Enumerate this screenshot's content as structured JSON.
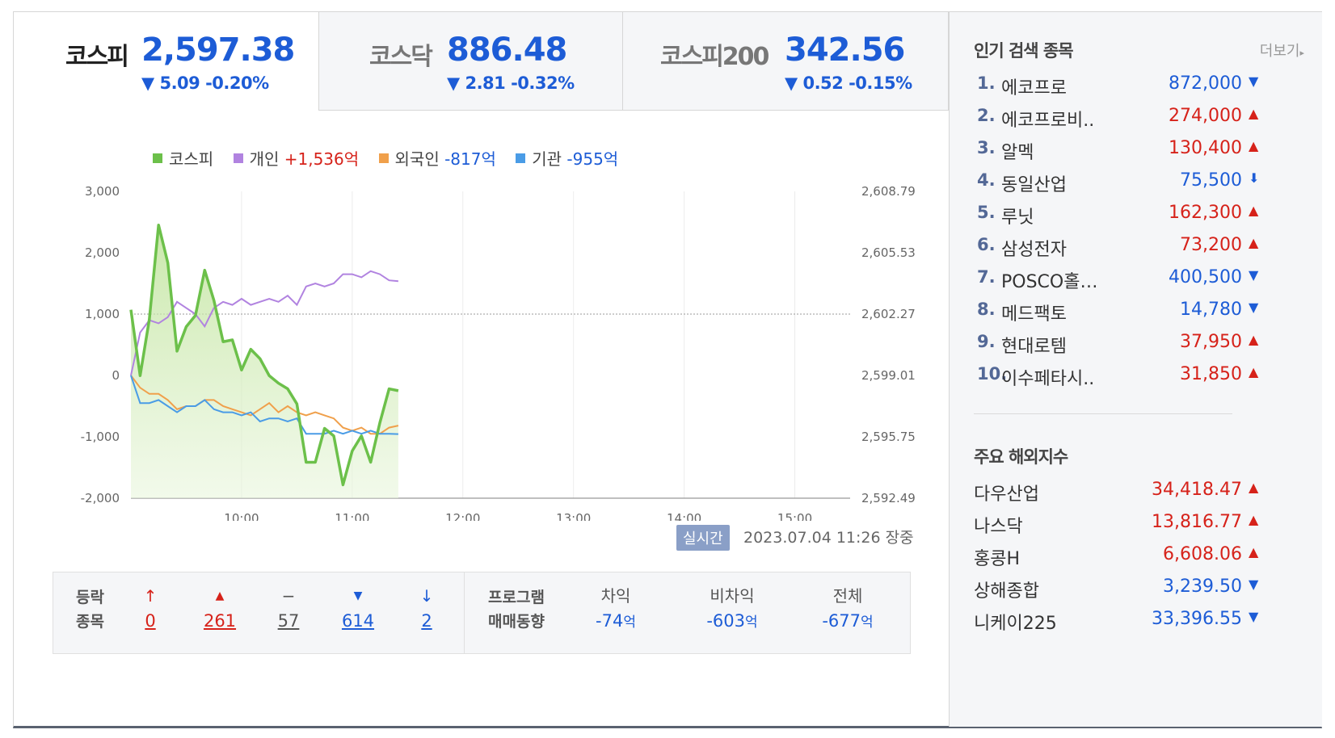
{
  "tabs": [
    {
      "name": "코스피",
      "value": "2,597.38",
      "change": "▼ 5.09 -0.20%"
    },
    {
      "name": "코스닥",
      "value": "886.48",
      "change": "▼ 2.81 -0.32%"
    },
    {
      "name": "코스피200",
      "value": "342.56",
      "change": "▼ 0.52 -0.15%"
    }
  ],
  "legend": [
    {
      "label": "코스피",
      "value": "",
      "color": "#6cc04a"
    },
    {
      "label": "개인",
      "value": "+1,536억",
      "color": "#b183e0"
    },
    {
      "label": "외국인",
      "value": "-817억",
      "color": "#f0a04b"
    },
    {
      "label": "기관",
      "value": "-955억",
      "color": "#4a9ce6"
    }
  ],
  "realtime": {
    "badge": "실시간",
    "time": "2023.07.04 11:26 장중"
  },
  "chart_data": {
    "type": "line",
    "x_labels": [
      "10:00",
      "11:00",
      "12:00",
      "13:00",
      "14:00",
      "15:00"
    ],
    "left_axis": {
      "ticks": [
        "3,000",
        "2,000",
        "1,000",
        "0",
        "-1,000",
        "-2,000"
      ],
      "ylim": [
        -2000,
        3000
      ]
    },
    "right_axis": {
      "ticks": [
        "2,608.79",
        "2,605.53",
        "2,602.27",
        "2,599.01",
        "2,595.75",
        "2,592.49"
      ],
      "ylim": [
        2592.49,
        2608.79
      ]
    },
    "reference_line": 2602.27,
    "times": [
      "09:00",
      "09:05",
      "09:10",
      "09:15",
      "09:20",
      "09:25",
      "09:30",
      "09:35",
      "09:40",
      "09:45",
      "09:50",
      "09:55",
      "10:00",
      "10:05",
      "10:10",
      "10:15",
      "10:20",
      "10:25",
      "10:30",
      "10:35",
      "10:40",
      "10:45",
      "10:50",
      "10:55",
      "11:00",
      "11:05",
      "11:10",
      "11:15",
      "11:20",
      "11:25"
    ],
    "series": [
      {
        "name": "코스피",
        "axis": "right",
        "color": "#6cc04a",
        "values": [
          2602.5,
          2599.0,
          2602.0,
          2607.0,
          2605.0,
          2600.3,
          2601.6,
          2602.2,
          2604.6,
          2603.0,
          2600.8,
          2600.9,
          2599.3,
          2600.4,
          2599.9,
          2599.0,
          2598.6,
          2598.3,
          2597.5,
          2594.4,
          2594.4,
          2596.2,
          2595.8,
          2593.2,
          2595.0,
          2595.8,
          2594.4,
          2596.5,
          2598.3,
          2598.2
        ]
      },
      {
        "name": "개인",
        "axis": "left",
        "color": "#b183e0",
        "values": [
          0,
          700,
          900,
          850,
          950,
          1200,
          1100,
          1000,
          800,
          1100,
          1200,
          1150,
          1250,
          1150,
          1200,
          1250,
          1200,
          1300,
          1150,
          1450,
          1500,
          1450,
          1500,
          1650,
          1650,
          1600,
          1700,
          1650,
          1550,
          1536
        ]
      },
      {
        "name": "외국인",
        "axis": "left",
        "color": "#f0a04b",
        "values": [
          0,
          -200,
          -300,
          -300,
          -400,
          -550,
          -500,
          -500,
          -400,
          -400,
          -500,
          -550,
          -600,
          -650,
          -550,
          -450,
          -600,
          -500,
          -600,
          -650,
          -600,
          -650,
          -700,
          -850,
          -900,
          -850,
          -950,
          -950,
          -850,
          -817
        ]
      },
      {
        "name": "기관",
        "axis": "left",
        "color": "#4a9ce6",
        "values": [
          0,
          -450,
          -450,
          -400,
          -500,
          -600,
          -500,
          -500,
          -400,
          -550,
          -600,
          -600,
          -650,
          -600,
          -750,
          -700,
          -700,
          -750,
          -700,
          -950,
          -950,
          -950,
          -900,
          -950,
          -900,
          -950,
          -900,
          -950,
          -950,
          -955
        ]
      }
    ]
  },
  "breadth": {
    "label_line1": "등락",
    "label_line2": "종목",
    "items": [
      {
        "icon": "↑",
        "value": "0",
        "color": "#d6221a"
      },
      {
        "icon": "▲",
        "value": "261",
        "color": "#d6221a"
      },
      {
        "icon": "−",
        "value": "57",
        "color": "#555555"
      },
      {
        "icon": "▼",
        "value": "614",
        "color": "#1d5cd6"
      },
      {
        "icon": "↓",
        "value": "2",
        "color": "#1d5cd6"
      }
    ]
  },
  "program": {
    "label_line1": "프로그램",
    "label_line2": "매매동향",
    "unit": "억",
    "items": [
      {
        "header": "차익",
        "value": "-74"
      },
      {
        "header": "비차익",
        "value": "-603"
      },
      {
        "header": "전체",
        "value": "-677"
      }
    ]
  },
  "popular": {
    "title": "인기 검색 종목",
    "more": "더보기",
    "items": [
      {
        "rank": "1.",
        "name": "에코프로",
        "price": "872,000",
        "dir": "down"
      },
      {
        "rank": "2.",
        "name": "에코프로비..",
        "price": "274,000",
        "dir": "up"
      },
      {
        "rank": "3.",
        "name": "알멕",
        "price": "130,400",
        "dir": "up"
      },
      {
        "rank": "4.",
        "name": "동일산업",
        "price": "75,500",
        "dir": "lower-limit"
      },
      {
        "rank": "5.",
        "name": "루닛",
        "price": "162,300",
        "dir": "up"
      },
      {
        "rank": "6.",
        "name": "삼성전자",
        "price": "73,200",
        "dir": "up"
      },
      {
        "rank": "7.",
        "name": "POSCO홀…",
        "price": "400,500",
        "dir": "down"
      },
      {
        "rank": "8.",
        "name": "메드팩토",
        "price": "14,780",
        "dir": "down"
      },
      {
        "rank": "9.",
        "name": "현대로템",
        "price": "37,950",
        "dir": "up"
      },
      {
        "rank": "10.",
        "name": "이수페타시..",
        "price": "31,850",
        "dir": "up"
      }
    ]
  },
  "indices": {
    "title": "주요 해외지수",
    "items": [
      {
        "name": "다우산업",
        "value": "34,418.47",
        "dir": "up"
      },
      {
        "name": "나스닥",
        "value": "13,816.77",
        "dir": "up"
      },
      {
        "name": "홍콩H",
        "value": "6,608.06",
        "dir": "up"
      },
      {
        "name": "상해종합",
        "value": "3,239.50",
        "dir": "down"
      },
      {
        "name": "니케이225",
        "value": "33,396.55",
        "dir": "down"
      }
    ]
  }
}
